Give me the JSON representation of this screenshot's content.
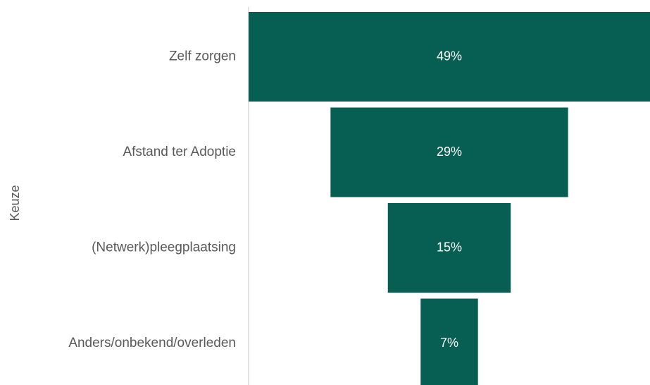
{
  "chart_data": {
    "type": "funnel",
    "y_label": "Keuze",
    "categories": [
      "Zelf zorgen",
      "Afstand ter Adoptie",
      "(Netwerk)pleegplaatsing",
      "Anders/onbekend/overleden"
    ],
    "values": [
      49,
      29,
      15,
      7
    ],
    "value_labels": [
      "49%",
      "29%",
      "15%",
      "7%"
    ],
    "color": "#075e52"
  }
}
